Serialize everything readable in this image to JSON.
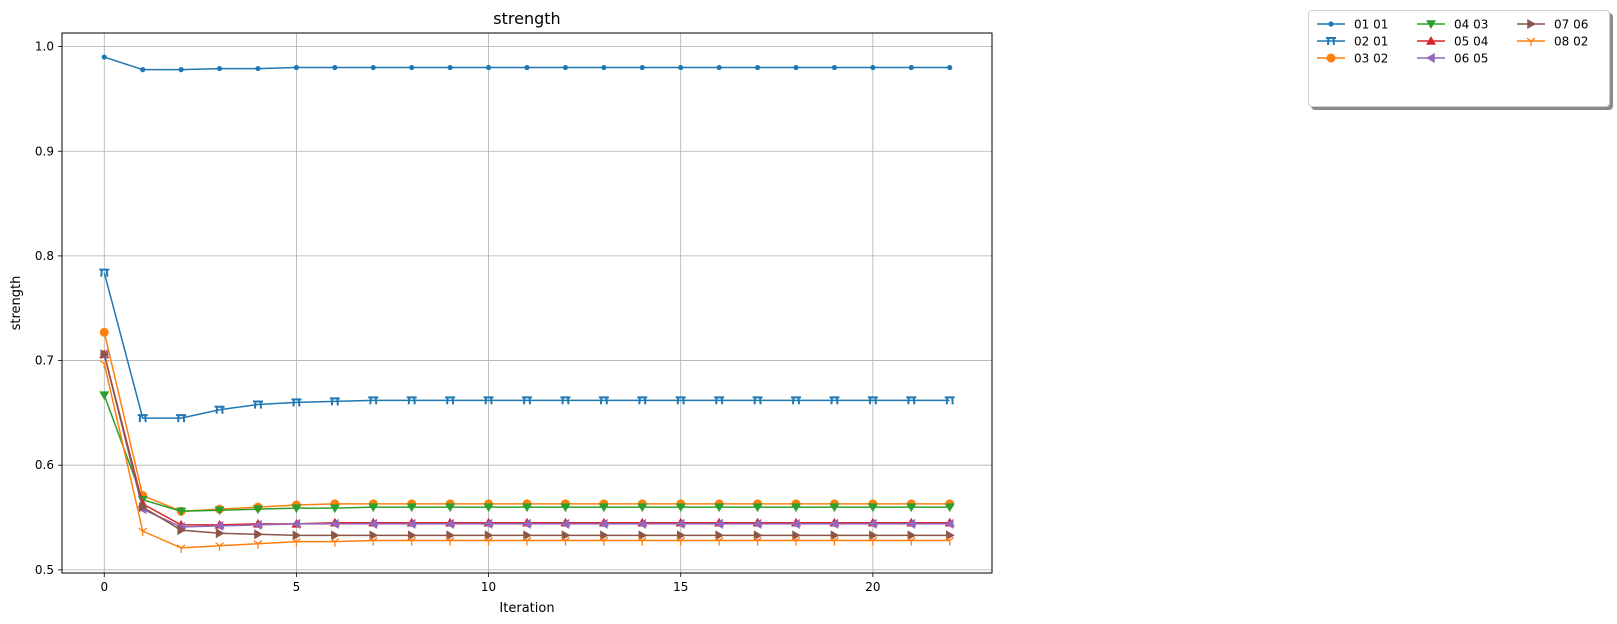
{
  "chart_data": {
    "type": "line",
    "title": "strength",
    "xlabel": "Iteration",
    "ylabel": "strength",
    "xlim": [
      -1.1,
      23.1
    ],
    "ylim": [
      0.497,
      1.013
    ],
    "xticks": [
      "0",
      "5",
      "10",
      "15",
      "20"
    ],
    "yticks": [
      "0.5",
      "0.6",
      "0.7",
      "0.8",
      "0.9",
      "1.0"
    ],
    "grid": true,
    "legend_position": "top-right, outside plot",
    "legend_columns": 3,
    "x": [
      0,
      1,
      2,
      3,
      4,
      5,
      6,
      7,
      8,
      9,
      10,
      11,
      12,
      13,
      14,
      15,
      16,
      17,
      18,
      19,
      20,
      21,
      22
    ],
    "series": [
      {
        "name": "01 01",
        "color": "#1f77b4",
        "marker": "point",
        "values": [
          0.99,
          0.978,
          0.978,
          0.979,
          0.979,
          0.98,
          0.98,
          0.98,
          0.98,
          0.98,
          0.98,
          0.98,
          0.98,
          0.98,
          0.98,
          0.98,
          0.98,
          0.98,
          0.98,
          0.98,
          0.98,
          0.98,
          0.98
        ]
      },
      {
        "name": "02 01",
        "color": "#1f77b4",
        "marker": "pi",
        "values": [
          0.784,
          0.645,
          0.645,
          0.653,
          0.658,
          0.66,
          0.661,
          0.662,
          0.662,
          0.662,
          0.662,
          0.662,
          0.662,
          0.662,
          0.662,
          0.662,
          0.662,
          0.662,
          0.662,
          0.662,
          0.662,
          0.662,
          0.662
        ]
      },
      {
        "name": "03 02",
        "color": "#ff7f0e",
        "marker": "circle",
        "values": [
          0.727,
          0.571,
          0.556,
          0.558,
          0.56,
          0.562,
          0.563,
          0.563,
          0.563,
          0.563,
          0.563,
          0.563,
          0.563,
          0.563,
          0.563,
          0.563,
          0.563,
          0.563,
          0.563,
          0.563,
          0.563,
          0.563,
          0.563
        ]
      },
      {
        "name": "04 03",
        "color": "#2ca02c",
        "marker": "triangle_down",
        "values": [
          0.667,
          0.567,
          0.556,
          0.557,
          0.558,
          0.559,
          0.559,
          0.56,
          0.56,
          0.56,
          0.56,
          0.56,
          0.56,
          0.56,
          0.56,
          0.56,
          0.56,
          0.56,
          0.56,
          0.56,
          0.56,
          0.56,
          0.56
        ]
      },
      {
        "name": "05 04",
        "color": "#d62728",
        "marker": "triangle_up",
        "values": [
          0.706,
          0.563,
          0.543,
          0.543,
          0.544,
          0.544,
          0.545,
          0.545,
          0.545,
          0.545,
          0.545,
          0.545,
          0.545,
          0.545,
          0.545,
          0.545,
          0.545,
          0.545,
          0.545,
          0.545,
          0.545,
          0.545,
          0.545
        ]
      },
      {
        "name": "06 05",
        "color": "#9467bd",
        "marker": "triangle_left",
        "values": [
          0.706,
          0.558,
          0.541,
          0.542,
          0.543,
          0.544,
          0.544,
          0.544,
          0.544,
          0.544,
          0.544,
          0.544,
          0.544,
          0.544,
          0.544,
          0.544,
          0.544,
          0.544,
          0.544,
          0.544,
          0.544,
          0.544,
          0.544
        ]
      },
      {
        "name": "07 06",
        "color": "#8c564b",
        "marker": "triangle_right",
        "values": [
          0.706,
          0.56,
          0.538,
          0.535,
          0.534,
          0.533,
          0.533,
          0.533,
          0.533,
          0.533,
          0.533,
          0.533,
          0.533,
          0.533,
          0.533,
          0.533,
          0.533,
          0.533,
          0.533,
          0.533,
          0.533,
          0.533,
          0.533
        ]
      },
      {
        "name": "08 02",
        "color": "#ff7f0e",
        "marker": "tri_down",
        "values": [
          0.697,
          0.537,
          0.521,
          0.523,
          0.525,
          0.527,
          0.527,
          0.528,
          0.528,
          0.528,
          0.528,
          0.528,
          0.528,
          0.528,
          0.528,
          0.528,
          0.528,
          0.528,
          0.528,
          0.528,
          0.528,
          0.528,
          0.528
        ]
      }
    ]
  }
}
